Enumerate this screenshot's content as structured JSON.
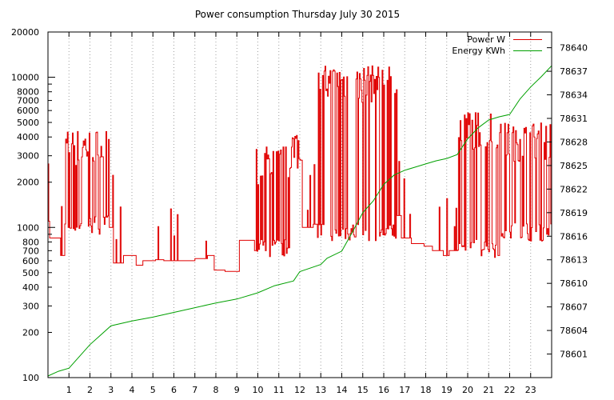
{
  "chart_data": {
    "type": "line",
    "title": "Power consumption Thursday July 30 2015",
    "xlabel": "",
    "ylabel": "",
    "xlim": [
      0,
      24
    ],
    "x_ticks": [
      1,
      2,
      3,
      4,
      5,
      6,
      7,
      8,
      9,
      10,
      11,
      12,
      13,
      14,
      15,
      16,
      17,
      18,
      19,
      20,
      21,
      22,
      23
    ],
    "ylim": [
      100,
      20000
    ],
    "yscale": "log",
    "y_ticks": [
      100,
      200,
      300,
      400,
      500,
      600,
      700,
      800,
      1000,
      2000,
      3000,
      4000,
      5000,
      6000,
      7000,
      8000,
      10000,
      20000
    ],
    "y2lim": [
      78598,
      78642
    ],
    "y2_ticks": [
      78601,
      78604,
      78607,
      78610,
      78613,
      78616,
      78619,
      78622,
      78625,
      78628,
      78631,
      78634,
      78637,
      78640
    ],
    "grid": "vertical-dashed",
    "legend_position": "top-right",
    "series": [
      {
        "name": "Power W",
        "axis": "left",
        "color": "#e00000",
        "step": true,
        "baseline": [
          [
            0,
            1100
          ],
          [
            0.05,
            850
          ],
          [
            0.6,
            650
          ],
          [
            0.8,
            2800
          ],
          [
            1.5,
            2700
          ],
          [
            1.8,
            950
          ],
          [
            2.0,
            2800
          ],
          [
            2.6,
            2700
          ],
          [
            2.9,
            1000
          ],
          [
            3.1,
            580
          ],
          [
            3.6,
            650
          ],
          [
            4.2,
            560
          ],
          [
            4.5,
            600
          ],
          [
            5.1,
            610
          ],
          [
            5.5,
            600
          ],
          [
            6.0,
            600
          ],
          [
            6.5,
            600
          ],
          [
            7.0,
            620
          ],
          [
            7.6,
            650
          ],
          [
            7.9,
            520
          ],
          [
            8.4,
            510
          ],
          [
            9.1,
            820
          ],
          [
            9.8,
            700
          ],
          [
            10.3,
            1200
          ],
          [
            10.8,
            750
          ],
          [
            11.2,
            730
          ],
          [
            11.6,
            2800
          ],
          [
            12.1,
            1000
          ],
          [
            12.6,
            1050
          ],
          [
            13.0,
            1200
          ],
          [
            13.3,
            1100
          ],
          [
            13.6,
            1000
          ],
          [
            13.9,
            2000
          ],
          [
            14.2,
            4000
          ],
          [
            14.7,
            4500
          ],
          [
            15.2,
            4500
          ],
          [
            15.6,
            3500
          ],
          [
            16.0,
            2000
          ],
          [
            16.4,
            1200
          ],
          [
            16.8,
            850
          ],
          [
            17.3,
            780
          ],
          [
            17.9,
            750
          ],
          [
            18.3,
            700
          ],
          [
            18.8,
            650
          ],
          [
            19.1,
            700
          ],
          [
            19.5,
            2800
          ],
          [
            19.8,
            5000
          ],
          [
            20.2,
            2700
          ],
          [
            20.6,
            2500
          ],
          [
            21.0,
            2000
          ],
          [
            21.4,
            650
          ],
          [
            21.8,
            700
          ],
          [
            22.1,
            4500
          ],
          [
            22.5,
            2700
          ],
          [
            23.0,
            2700
          ],
          [
            23.4,
            2500
          ],
          [
            23.7,
            2000
          ],
          [
            24.0,
            1100
          ]
        ],
        "bursts": [
          [
            0.8,
            2.9,
            1000,
            4500
          ],
          [
            9.9,
            11.5,
            700,
            3500
          ],
          [
            11.5,
            12.0,
            2700,
            4500
          ],
          [
            12.8,
            16.6,
            900,
            12000
          ],
          [
            19.5,
            21.4,
            700,
            6000
          ],
          [
            21.5,
            24.0,
            900,
            5000
          ]
        ]
      },
      {
        "name": "Energy KWh",
        "axis": "right",
        "color": "#00a000",
        "step": false,
        "points": [
          [
            0,
            78598.2
          ],
          [
            0.5,
            78598.8
          ],
          [
            1.0,
            78599.2
          ],
          [
            2.0,
            78602.2
          ],
          [
            3.0,
            78604.6
          ],
          [
            4.0,
            78605.2
          ],
          [
            5.0,
            78605.7
          ],
          [
            6.0,
            78606.3
          ],
          [
            7.0,
            78606.9
          ],
          [
            8.0,
            78607.5
          ],
          [
            9.0,
            78608.0
          ],
          [
            10.0,
            78608.8
          ],
          [
            10.8,
            78609.7
          ],
          [
            11.7,
            78610.3
          ],
          [
            12.0,
            78611.5
          ],
          [
            13.0,
            78612.4
          ],
          [
            13.3,
            78613.2
          ],
          [
            14.0,
            78614.1
          ],
          [
            14.5,
            78616.5
          ],
          [
            15.0,
            78619.0
          ],
          [
            15.5,
            78620.5
          ],
          [
            16.0,
            78622.6
          ],
          [
            16.5,
            78623.8
          ],
          [
            17.0,
            78624.4
          ],
          [
            17.5,
            78624.8
          ],
          [
            18.0,
            78625.2
          ],
          [
            18.5,
            78625.6
          ],
          [
            19.0,
            78625.9
          ],
          [
            19.5,
            78626.4
          ],
          [
            20.0,
            78628.4
          ],
          [
            20.5,
            78629.8
          ],
          [
            21.0,
            78630.8
          ],
          [
            21.5,
            78631.2
          ],
          [
            22.0,
            78631.5
          ],
          [
            22.5,
            78633.5
          ],
          [
            23.0,
            78635.0
          ],
          [
            23.5,
            78636.3
          ],
          [
            24.0,
            78637.7
          ]
        ]
      }
    ]
  },
  "legend": [
    {
      "label": "Power W",
      "color": "#e00000"
    },
    {
      "label": "Energy KWh",
      "color": "#00a000"
    }
  ]
}
